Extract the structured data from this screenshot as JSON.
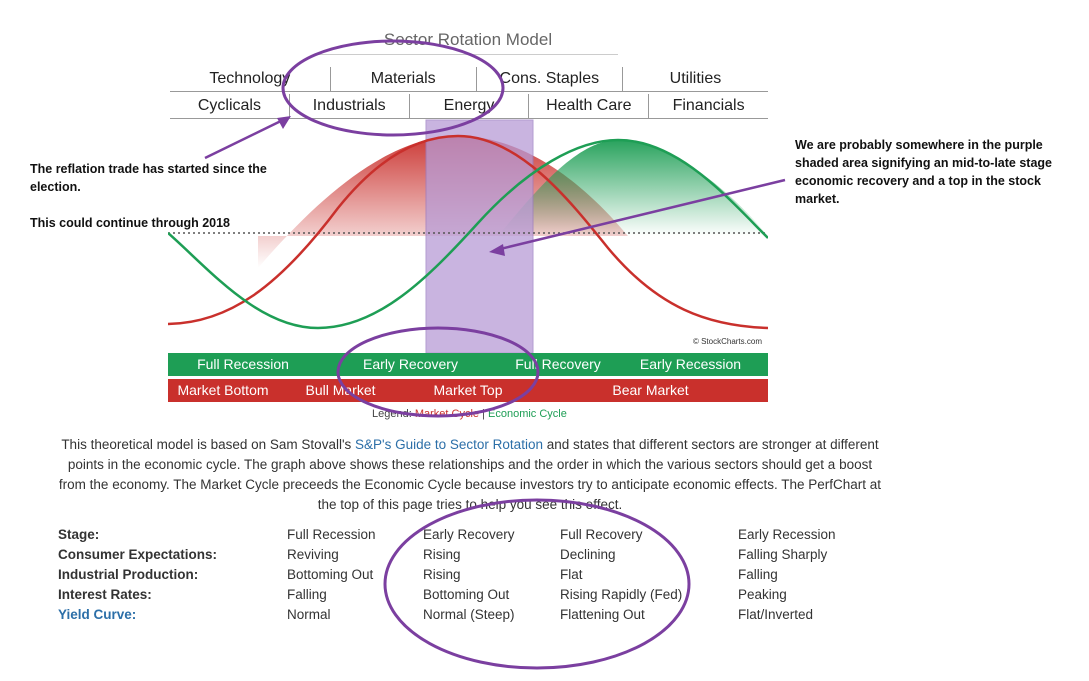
{
  "title": "Sector Rotation Model",
  "sectors_top": [
    "Technology",
    "Materials",
    "Cons. Staples",
    "Utilities"
  ],
  "sectors_bottom": [
    "Cyclicals",
    "Industrials",
    "Energy",
    "Health Care",
    "Financials"
  ],
  "economic_stages": [
    "Full Recession",
    "Early Recovery",
    "Full Recovery",
    "Early Recession"
  ],
  "market_stages": [
    "Market Bottom",
    "Bull Market",
    "Market Top",
    "Bear Market"
  ],
  "watermark": "© StockCharts.com",
  "legend": {
    "prefix": "Legend:",
    "market": "Market Cycle",
    "sep": " | ",
    "economic": "Economic Cycle"
  },
  "description": {
    "part1": "This theoretical model is based on Sam Stovall's ",
    "link": "S&P's Guide to Sector Rotation",
    "part2": " and states that different sectors are stronger at different points in the economic cycle. The graph above shows these relationships and the order in which the various sectors should get a boost from the economy. The Market Cycle preceeds the Economic Cycle because investors try to anticipate economic effects. The PerfChart at the top of this page tries to help you see this effect."
  },
  "note_left": {
    "line1": "The reflation trade has started since the election.",
    "line2": "This could continue through 2018"
  },
  "note_right": "We are probably somewhere in the purple shaded area signifying an mid-to-late stage economic recovery and a top in the stock market.",
  "table": {
    "rows": [
      {
        "label": "Stage:",
        "link": false,
        "cells": [
          "Full Recession",
          "Early Recovery",
          "Full Recovery",
          "Early Recession"
        ]
      },
      {
        "label": "Consumer Expectations:",
        "link": false,
        "cells": [
          "Reviving",
          "Rising",
          "Declining",
          "Falling Sharply"
        ]
      },
      {
        "label": "Industrial Production:",
        "link": false,
        "cells": [
          "Bottoming Out",
          "Rising",
          "Flat",
          "Falling"
        ]
      },
      {
        "label": "Interest Rates:",
        "link": false,
        "cells": [
          "Falling",
          "Bottoming Out",
          "Rising Rapidly (Fed)",
          "Peaking"
        ]
      },
      {
        "label": "Yield Curve:",
        "link": true,
        "cells": [
          "Normal",
          "Normal (Steep)",
          "Flattening Out",
          "Flat/Inverted"
        ]
      }
    ]
  },
  "colors": {
    "market_cycle": "#c9302c",
    "economic_cycle": "#1e9e55",
    "highlight": "#7b3fa0",
    "shade": "#b79bd6"
  }
}
